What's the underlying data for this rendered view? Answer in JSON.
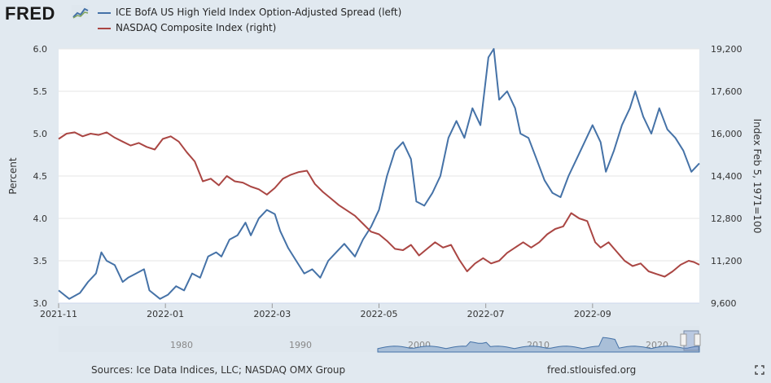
{
  "brand": {
    "logo_text": "FRED"
  },
  "legend": [
    {
      "label": "ICE BofA US High Yield Index Option-Adjusted Spread (left)",
      "color": "#4572a7"
    },
    {
      "label": "NASDAQ Composite Index (right)",
      "color": "#aa4643"
    }
  ],
  "footer": {
    "sources": "Sources: Ice Data Indices, LLC; NASDAQ OMX Group",
    "url": "fred.stlouisfed.org"
  },
  "chart_data": {
    "type": "line",
    "ylabel": "Percent",
    "y2label": "Index Feb 5, 1971=100",
    "ylim": [
      3.0,
      6.0
    ],
    "y2lim": [
      9600,
      19200
    ],
    "yticks": [
      "3.0",
      "3.5",
      "4.0",
      "4.5",
      "5.0",
      "5.5",
      "6.0"
    ],
    "y2ticks": [
      "9,600",
      "11,200",
      "12,800",
      "14,400",
      "16,000",
      "17,600",
      "19,200"
    ],
    "xticks": [
      "2021-11",
      "2022-01",
      "2022-03",
      "2022-05",
      "2022-07",
      "2022-09"
    ],
    "x_range_months": [
      0,
      12
    ],
    "navigator_ticks": [
      "1980",
      "1990",
      "2000",
      "2010",
      "2020"
    ],
    "series": [
      {
        "name": "ICE BofA US High Yield Index Option-Adjusted Spread (left)",
        "axis": "left",
        "points": [
          [
            0.0,
            3.15
          ],
          [
            0.2,
            3.05
          ],
          [
            0.4,
            3.12
          ],
          [
            0.55,
            3.25
          ],
          [
            0.7,
            3.35
          ],
          [
            0.8,
            3.6
          ],
          [
            0.9,
            3.5
          ],
          [
            1.05,
            3.45
          ],
          [
            1.2,
            3.25
          ],
          [
            1.3,
            3.3
          ],
          [
            1.45,
            3.35
          ],
          [
            1.6,
            3.4
          ],
          [
            1.7,
            3.15
          ],
          [
            1.9,
            3.05
          ],
          [
            2.05,
            3.1
          ],
          [
            2.2,
            3.2
          ],
          [
            2.35,
            3.15
          ],
          [
            2.5,
            3.35
          ],
          [
            2.65,
            3.3
          ],
          [
            2.8,
            3.55
          ],
          [
            2.95,
            3.6
          ],
          [
            3.05,
            3.55
          ],
          [
            3.2,
            3.75
          ],
          [
            3.35,
            3.8
          ],
          [
            3.5,
            3.95
          ],
          [
            3.6,
            3.8
          ],
          [
            3.75,
            4.0
          ],
          [
            3.9,
            4.1
          ],
          [
            4.05,
            4.05
          ],
          [
            4.15,
            3.85
          ],
          [
            4.3,
            3.65
          ],
          [
            4.45,
            3.5
          ],
          [
            4.6,
            3.35
          ],
          [
            4.75,
            3.4
          ],
          [
            4.9,
            3.3
          ],
          [
            5.05,
            3.5
          ],
          [
            5.2,
            3.6
          ],
          [
            5.35,
            3.7
          ],
          [
            5.55,
            3.55
          ],
          [
            5.7,
            3.75
          ],
          [
            5.85,
            3.9
          ],
          [
            6.0,
            4.1
          ],
          [
            6.15,
            4.5
          ],
          [
            6.3,
            4.8
          ],
          [
            6.45,
            4.9
          ],
          [
            6.6,
            4.7
          ],
          [
            6.7,
            4.2
          ],
          [
            6.85,
            4.15
          ],
          [
            7.0,
            4.3
          ],
          [
            7.15,
            4.5
          ],
          [
            7.3,
            4.95
          ],
          [
            7.45,
            5.15
          ],
          [
            7.6,
            4.95
          ],
          [
            7.75,
            5.3
          ],
          [
            7.9,
            5.1
          ],
          [
            8.05,
            5.9
          ],
          [
            8.15,
            6.0
          ],
          [
            8.25,
            5.4
          ],
          [
            8.4,
            5.5
          ],
          [
            8.55,
            5.3
          ],
          [
            8.65,
            5.0
          ],
          [
            8.8,
            4.95
          ],
          [
            8.95,
            4.7
          ],
          [
            9.1,
            4.45
          ],
          [
            9.25,
            4.3
          ],
          [
            9.4,
            4.25
          ],
          [
            9.55,
            4.5
          ],
          [
            9.7,
            4.7
          ],
          [
            9.85,
            4.9
          ],
          [
            10.0,
            5.1
          ],
          [
            10.15,
            4.9
          ],
          [
            10.25,
            4.55
          ],
          [
            10.4,
            4.8
          ],
          [
            10.55,
            5.1
          ],
          [
            10.7,
            5.3
          ],
          [
            10.8,
            5.5
          ],
          [
            10.95,
            5.2
          ],
          [
            11.1,
            5.0
          ],
          [
            11.25,
            5.3
          ],
          [
            11.4,
            5.05
          ],
          [
            11.55,
            4.95
          ],
          [
            11.7,
            4.8
          ],
          [
            11.85,
            4.55
          ],
          [
            12.0,
            4.65
          ]
        ]
      },
      {
        "name": "NASDAQ Composite Index (right)",
        "axis": "right",
        "points": [
          [
            0.0,
            15800
          ],
          [
            0.15,
            16000
          ],
          [
            0.3,
            16050
          ],
          [
            0.45,
            15900
          ],
          [
            0.6,
            16000
          ],
          [
            0.75,
            15950
          ],
          [
            0.9,
            16050
          ],
          [
            1.05,
            15850
          ],
          [
            1.2,
            15700
          ],
          [
            1.35,
            15550
          ],
          [
            1.5,
            15650
          ],
          [
            1.65,
            15500
          ],
          [
            1.8,
            15400
          ],
          [
            1.95,
            15800
          ],
          [
            2.1,
            15900
          ],
          [
            2.25,
            15700
          ],
          [
            2.4,
            15300
          ],
          [
            2.55,
            14950
          ],
          [
            2.7,
            14200
          ],
          [
            2.85,
            14300
          ],
          [
            3.0,
            14050
          ],
          [
            3.15,
            14400
          ],
          [
            3.3,
            14200
          ],
          [
            3.45,
            14150
          ],
          [
            3.6,
            14000
          ],
          [
            3.75,
            13900
          ],
          [
            3.9,
            13700
          ],
          [
            4.05,
            13950
          ],
          [
            4.2,
            14300
          ],
          [
            4.35,
            14450
          ],
          [
            4.5,
            14550
          ],
          [
            4.65,
            14600
          ],
          [
            4.8,
            14100
          ],
          [
            4.95,
            13800
          ],
          [
            5.1,
            13550
          ],
          [
            5.25,
            13300
          ],
          [
            5.4,
            13100
          ],
          [
            5.55,
            12900
          ],
          [
            5.7,
            12600
          ],
          [
            5.85,
            12300
          ],
          [
            6.0,
            12200
          ],
          [
            6.15,
            11950
          ],
          [
            6.3,
            11650
          ],
          [
            6.45,
            11600
          ],
          [
            6.6,
            11800
          ],
          [
            6.75,
            11400
          ],
          [
            6.9,
            11650
          ],
          [
            7.05,
            11900
          ],
          [
            7.2,
            11700
          ],
          [
            7.35,
            11800
          ],
          [
            7.5,
            11250
          ],
          [
            7.65,
            10800
          ],
          [
            7.8,
            11100
          ],
          [
            7.95,
            11300
          ],
          [
            8.1,
            11100
          ],
          [
            8.25,
            11200
          ],
          [
            8.4,
            11500
          ],
          [
            8.55,
            11700
          ],
          [
            8.7,
            11900
          ],
          [
            8.85,
            11700
          ],
          [
            9.0,
            11900
          ],
          [
            9.15,
            12200
          ],
          [
            9.3,
            12400
          ],
          [
            9.45,
            12500
          ],
          [
            9.6,
            13000
          ],
          [
            9.75,
            12800
          ],
          [
            9.9,
            12700
          ],
          [
            10.05,
            11900
          ],
          [
            10.15,
            11700
          ],
          [
            10.3,
            11900
          ],
          [
            10.45,
            11550
          ],
          [
            10.6,
            11200
          ],
          [
            10.75,
            11000
          ],
          [
            10.9,
            11100
          ],
          [
            11.05,
            10800
          ],
          [
            11.2,
            10700
          ],
          [
            11.35,
            10600
          ],
          [
            11.5,
            10800
          ],
          [
            11.65,
            11050
          ],
          [
            11.8,
            11200
          ],
          [
            11.9,
            11150
          ],
          [
            12.0,
            11050
          ]
        ]
      }
    ]
  }
}
